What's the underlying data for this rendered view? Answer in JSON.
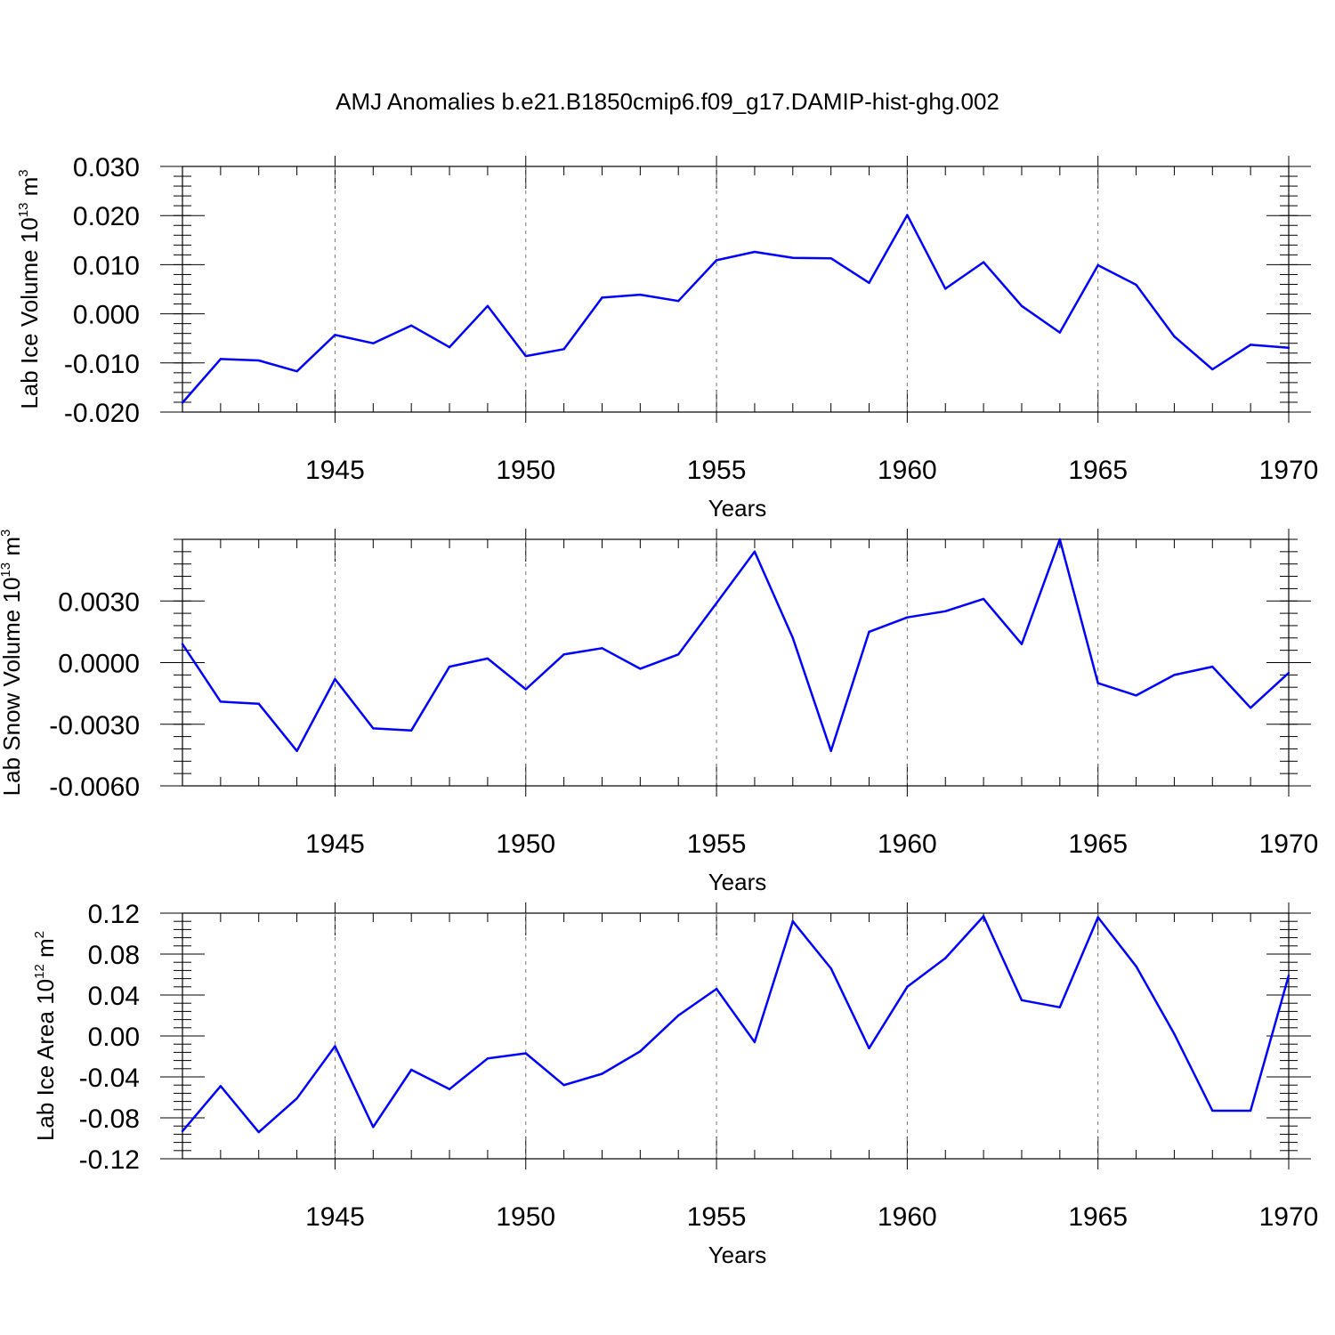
{
  "chart_data": {
    "title": "AMJ Anomalies b.e21.B1850cmip6.f09_g17.DAMIP-hist-ghg.002",
    "series_color": "#0000ff",
    "panels": [
      {
        "type": "line",
        "xlabel": "Years",
        "ylabel": {
          "text": "Lab Ice Volume 10",
          "sup": "13",
          "unit": " m",
          "unit_sup": "3"
        },
        "xlim": [
          1941,
          1970
        ],
        "ylim": [
          -0.02,
          0.03
        ],
        "x_ticks": [
          "1945",
          "1950",
          "1955",
          "1960",
          "1965",
          "1970"
        ],
        "y_ticks": [
          "-0.020",
          "-0.010",
          "0.000",
          "0.010",
          "0.020",
          "0.030"
        ],
        "y_tick_values": [
          -0.02,
          -0.01,
          0.0,
          0.01,
          0.02,
          0.03
        ],
        "x": [
          1941,
          1942,
          1943,
          1944,
          1945,
          1946,
          1947,
          1948,
          1949,
          1950,
          1951,
          1952,
          1953,
          1954,
          1955,
          1956,
          1957,
          1958,
          1959,
          1960,
          1961,
          1962,
          1963,
          1964,
          1965,
          1966,
          1967,
          1968,
          1969,
          1970
        ],
        "values": [
          -0.0181,
          -0.0092,
          -0.0095,
          -0.0117,
          -0.0043,
          -0.006,
          -0.0024,
          -0.0068,
          0.0016,
          -0.0086,
          -0.0072,
          0.0033,
          0.0039,
          0.0026,
          0.0109,
          0.0126,
          0.0114,
          0.0113,
          0.0063,
          0.0201,
          0.0051,
          0.0105,
          0.0016,
          -0.0038,
          0.0099,
          0.0059,
          -0.0046,
          -0.0113,
          -0.0063,
          -0.0069
        ]
      },
      {
        "type": "line",
        "xlabel": "Years",
        "ylabel": {
          "text": "Lab Snow Volume 10",
          "sup": "13",
          "unit": " m",
          "unit_sup": "3"
        },
        "xlim": [
          1941,
          1970
        ],
        "ylim": [
          -0.006,
          0.006
        ],
        "x_ticks": [
          "1945",
          "1950",
          "1955",
          "1960",
          "1965",
          "1970"
        ],
        "y_ticks": [
          "-0.0060",
          "-0.0030",
          "0.0000",
          "0.0030"
        ],
        "y_tick_values": [
          -0.006,
          -0.003,
          0.0,
          0.003
        ],
        "x": [
          1941,
          1942,
          1943,
          1944,
          1945,
          1946,
          1947,
          1948,
          1949,
          1950,
          1951,
          1952,
          1953,
          1954,
          1955,
          1956,
          1957,
          1958,
          1959,
          1960,
          1961,
          1962,
          1963,
          1964,
          1965,
          1966,
          1967,
          1968,
          1969,
          1970
        ],
        "values": [
          0.0009,
          -0.0019,
          -0.002,
          -0.0043,
          -0.0008,
          -0.0032,
          -0.0033,
          -0.0002,
          0.0002,
          -0.0013,
          0.0004,
          0.0007,
          -0.0003,
          0.0004,
          0.0029,
          0.0054,
          0.0012,
          -0.0043,
          0.0015,
          0.0022,
          0.0025,
          0.0031,
          0.0009,
          0.006,
          -0.001,
          -0.0016,
          -0.0006,
          -0.0002,
          -0.0022,
          -0.0005
        ]
      },
      {
        "type": "line",
        "xlabel": "Years",
        "ylabel": {
          "text": "Lab Ice Area 10",
          "sup": "12",
          "unit": " m",
          "unit_sup": "2"
        },
        "xlim": [
          1941,
          1970
        ],
        "ylim": [
          -0.12,
          0.12
        ],
        "x_ticks": [
          "1945",
          "1950",
          "1955",
          "1960",
          "1965",
          "1970"
        ],
        "y_ticks": [
          "-0.12",
          "-0.08",
          "-0.04",
          "0.00",
          "0.04",
          "0.08",
          "0.12"
        ],
        "y_tick_values": [
          -0.12,
          -0.08,
          -0.04,
          0.0,
          0.04,
          0.08,
          0.12
        ],
        "x": [
          1941,
          1942,
          1943,
          1944,
          1945,
          1946,
          1947,
          1948,
          1949,
          1950,
          1951,
          1952,
          1953,
          1954,
          1955,
          1956,
          1957,
          1958,
          1959,
          1960,
          1961,
          1962,
          1963,
          1964,
          1965,
          1966,
          1967,
          1968,
          1969,
          1970
        ],
        "values": [
          -0.093,
          -0.049,
          -0.094,
          -0.061,
          -0.01,
          -0.089,
          -0.033,
          -0.052,
          -0.022,
          -0.017,
          -0.048,
          -0.037,
          -0.015,
          0.02,
          0.046,
          -0.006,
          0.112,
          0.066,
          -0.012,
          0.048,
          0.076,
          0.117,
          0.035,
          0.028,
          0.116,
          0.068,
          0.002,
          -0.073,
          -0.073,
          0.059
        ]
      }
    ]
  }
}
